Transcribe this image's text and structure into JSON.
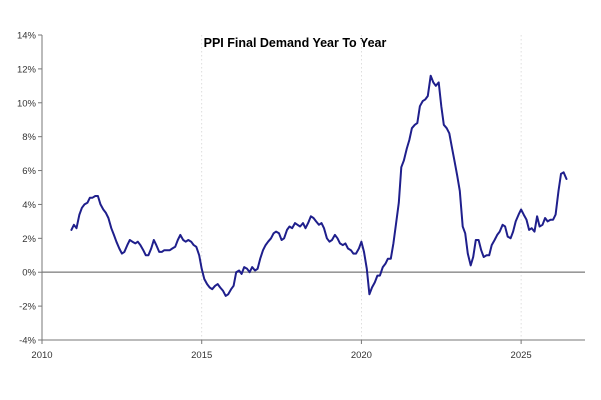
{
  "chart_data": {
    "type": "line",
    "title": "PPI Final Demand Year To Year",
    "xlabel": "",
    "ylabel": "",
    "xlim": [
      2010,
      2027
    ],
    "ylim": [
      -4,
      14
    ],
    "grid": false,
    "legend": "none",
    "x_ticks": [
      2010,
      2015,
      2020,
      2025
    ],
    "x_tick_labels": [
      "2010",
      "2015",
      "2020",
      "2025"
    ],
    "y_ticks": [
      -4,
      -2,
      0,
      2,
      4,
      6,
      8,
      10,
      12,
      14
    ],
    "y_tick_labels": [
      "-4%",
      "-2%",
      "0%",
      "2%",
      "4%",
      "6%",
      "8%",
      "10%",
      "12%",
      "14%"
    ],
    "reference_line": {
      "y": 0,
      "color": "#999999"
    },
    "colors": {
      "series": "#1f1f8c",
      "axis": "#777777",
      "zero_line": "#999999"
    },
    "series": [
      {
        "values": [
          [
            2010.92,
            2.5
          ],
          [
            2011.0,
            2.8
          ],
          [
            2011.08,
            2.6
          ],
          [
            2011.17,
            3.4
          ],
          [
            2011.25,
            3.8
          ],
          [
            2011.33,
            4.0
          ],
          [
            2011.42,
            4.1
          ],
          [
            2011.5,
            4.4
          ],
          [
            2011.58,
            4.4
          ],
          [
            2011.67,
            4.5
          ],
          [
            2011.75,
            4.5
          ],
          [
            2011.83,
            4.0
          ],
          [
            2011.92,
            3.7
          ],
          [
            2012.0,
            3.5
          ],
          [
            2012.08,
            3.2
          ],
          [
            2012.17,
            2.6
          ],
          [
            2012.25,
            2.2
          ],
          [
            2012.33,
            1.8
          ],
          [
            2012.42,
            1.4
          ],
          [
            2012.5,
            1.1
          ],
          [
            2012.58,
            1.2
          ],
          [
            2012.67,
            1.6
          ],
          [
            2012.75,
            1.9
          ],
          [
            2012.83,
            1.8
          ],
          [
            2012.92,
            1.7
          ],
          [
            2013.0,
            1.8
          ],
          [
            2013.08,
            1.6
          ],
          [
            2013.17,
            1.3
          ],
          [
            2013.25,
            1.0
          ],
          [
            2013.33,
            1.0
          ],
          [
            2013.42,
            1.4
          ],
          [
            2013.5,
            1.9
          ],
          [
            2013.58,
            1.6
          ],
          [
            2013.67,
            1.2
          ],
          [
            2013.75,
            1.2
          ],
          [
            2013.83,
            1.3
          ],
          [
            2013.92,
            1.3
          ],
          [
            2014.0,
            1.3
          ],
          [
            2014.08,
            1.4
          ],
          [
            2014.17,
            1.5
          ],
          [
            2014.25,
            1.9
          ],
          [
            2014.33,
            2.2
          ],
          [
            2014.42,
            1.9
          ],
          [
            2014.5,
            1.8
          ],
          [
            2014.58,
            1.9
          ],
          [
            2014.67,
            1.8
          ],
          [
            2014.75,
            1.6
          ],
          [
            2014.83,
            1.5
          ],
          [
            2014.92,
            1.0
          ],
          [
            2015.0,
            0.2
          ],
          [
            2015.08,
            -0.4
          ],
          [
            2015.17,
            -0.7
          ],
          [
            2015.25,
            -0.9
          ],
          [
            2015.33,
            -1.0
          ],
          [
            2015.42,
            -0.8
          ],
          [
            2015.5,
            -0.7
          ],
          [
            2015.58,
            -0.9
          ],
          [
            2015.67,
            -1.1
          ],
          [
            2015.75,
            -1.4
          ],
          [
            2015.83,
            -1.3
          ],
          [
            2015.92,
            -1.0
          ],
          [
            2016.0,
            -0.8
          ],
          [
            2016.08,
            0.0
          ],
          [
            2016.17,
            0.1
          ],
          [
            2016.25,
            -0.1
          ],
          [
            2016.33,
            0.3
          ],
          [
            2016.42,
            0.2
          ],
          [
            2016.5,
            0.0
          ],
          [
            2016.58,
            0.3
          ],
          [
            2016.67,
            0.1
          ],
          [
            2016.75,
            0.2
          ],
          [
            2016.83,
            0.8
          ],
          [
            2016.92,
            1.3
          ],
          [
            2017.0,
            1.6
          ],
          [
            2017.08,
            1.8
          ],
          [
            2017.17,
            2.0
          ],
          [
            2017.25,
            2.3
          ],
          [
            2017.33,
            2.4
          ],
          [
            2017.42,
            2.3
          ],
          [
            2017.5,
            1.9
          ],
          [
            2017.58,
            2.0
          ],
          [
            2017.67,
            2.5
          ],
          [
            2017.75,
            2.7
          ],
          [
            2017.83,
            2.6
          ],
          [
            2017.92,
            2.9
          ],
          [
            2018.0,
            2.8
          ],
          [
            2018.08,
            2.7
          ],
          [
            2018.17,
            2.9
          ],
          [
            2018.25,
            2.6
          ],
          [
            2018.33,
            2.9
          ],
          [
            2018.42,
            3.3
          ],
          [
            2018.5,
            3.2
          ],
          [
            2018.58,
            3.0
          ],
          [
            2018.67,
            2.8
          ],
          [
            2018.75,
            2.9
          ],
          [
            2018.83,
            2.6
          ],
          [
            2018.92,
            2.0
          ],
          [
            2019.0,
            1.8
          ],
          [
            2019.08,
            1.9
          ],
          [
            2019.17,
            2.2
          ],
          [
            2019.25,
            2.0
          ],
          [
            2019.33,
            1.7
          ],
          [
            2019.42,
            1.6
          ],
          [
            2019.5,
            1.7
          ],
          [
            2019.58,
            1.4
          ],
          [
            2019.67,
            1.3
          ],
          [
            2019.75,
            1.1
          ],
          [
            2019.83,
            1.1
          ],
          [
            2019.92,
            1.4
          ],
          [
            2020.0,
            1.8
          ],
          [
            2020.08,
            1.2
          ],
          [
            2020.17,
            0.2
          ],
          [
            2020.25,
            -1.3
          ],
          [
            2020.33,
            -0.9
          ],
          [
            2020.42,
            -0.6
          ],
          [
            2020.5,
            -0.2
          ],
          [
            2020.58,
            -0.2
          ],
          [
            2020.67,
            0.3
          ],
          [
            2020.75,
            0.5
          ],
          [
            2020.83,
            0.8
          ],
          [
            2020.92,
            0.8
          ],
          [
            2021.0,
            1.7
          ],
          [
            2021.08,
            2.8
          ],
          [
            2021.17,
            4.1
          ],
          [
            2021.25,
            6.2
          ],
          [
            2021.33,
            6.6
          ],
          [
            2021.42,
            7.3
          ],
          [
            2021.5,
            7.8
          ],
          [
            2021.58,
            8.5
          ],
          [
            2021.67,
            8.7
          ],
          [
            2021.75,
            8.8
          ],
          [
            2021.83,
            9.8
          ],
          [
            2021.92,
            10.1
          ],
          [
            2022.0,
            10.2
          ],
          [
            2022.08,
            10.4
          ],
          [
            2022.17,
            11.6
          ],
          [
            2022.25,
            11.2
          ],
          [
            2022.33,
            11.0
          ],
          [
            2022.42,
            11.2
          ],
          [
            2022.5,
            9.8
          ],
          [
            2022.58,
            8.7
          ],
          [
            2022.67,
            8.5
          ],
          [
            2022.75,
            8.2
          ],
          [
            2022.83,
            7.4
          ],
          [
            2022.92,
            6.5
          ],
          [
            2023.0,
            5.7
          ],
          [
            2023.08,
            4.8
          ],
          [
            2023.17,
            2.7
          ],
          [
            2023.25,
            2.3
          ],
          [
            2023.33,
            1.1
          ],
          [
            2023.42,
            0.4
          ],
          [
            2023.5,
            0.9
          ],
          [
            2023.58,
            1.9
          ],
          [
            2023.67,
            1.9
          ],
          [
            2023.75,
            1.3
          ],
          [
            2023.83,
            0.9
          ],
          [
            2023.92,
            1.0
          ],
          [
            2024.0,
            1.0
          ],
          [
            2024.08,
            1.6
          ],
          [
            2024.17,
            1.9
          ],
          [
            2024.25,
            2.2
          ],
          [
            2024.33,
            2.4
          ],
          [
            2024.42,
            2.8
          ],
          [
            2024.5,
            2.7
          ],
          [
            2024.58,
            2.1
          ],
          [
            2024.67,
            2.0
          ],
          [
            2024.75,
            2.4
          ],
          [
            2024.83,
            3.0
          ],
          [
            2024.92,
            3.4
          ],
          [
            2025.0,
            3.7
          ],
          [
            2025.08,
            3.4
          ],
          [
            2025.17,
            3.1
          ],
          [
            2025.25,
            2.5
          ],
          [
            2025.33,
            2.6
          ],
          [
            2025.42,
            2.4
          ],
          [
            2025.5,
            3.3
          ],
          [
            2025.58,
            2.7
          ],
          [
            2025.67,
            2.8
          ],
          [
            2025.75,
            3.2
          ],
          [
            2025.83,
            3.0
          ],
          [
            2025.92,
            3.1
          ],
          [
            2026.0,
            3.1
          ],
          [
            2026.08,
            3.4
          ],
          [
            2026.17,
            4.8
          ],
          [
            2026.25,
            5.8
          ],
          [
            2026.33,
            5.9
          ],
          [
            2026.42,
            5.5
          ]
        ]
      }
    ]
  }
}
